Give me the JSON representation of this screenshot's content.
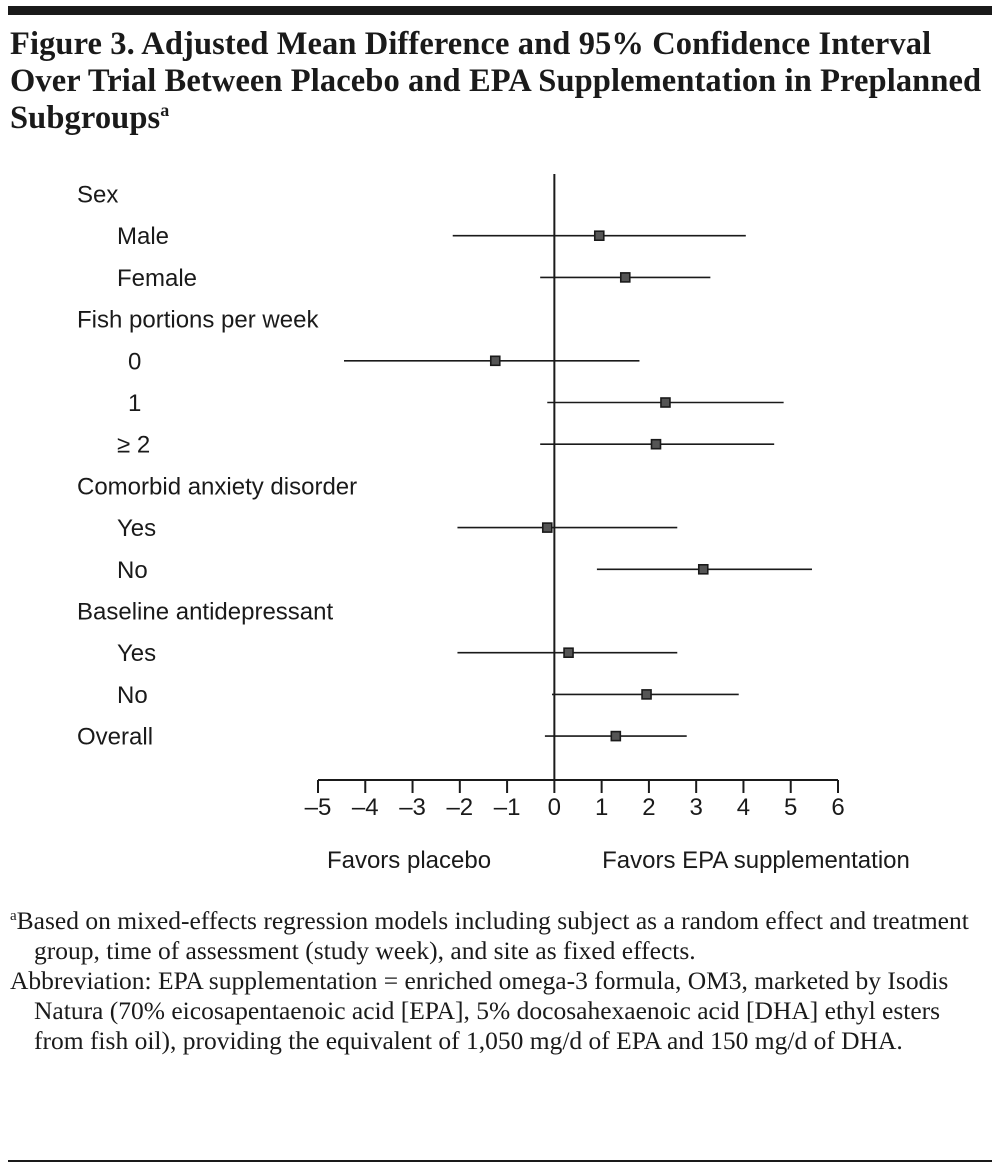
{
  "figure": {
    "title": "Figure 3. Adjusted Mean Difference and 95% Confidence Interval Over Trial Between Placebo and EPA Supplementation in Preplanned Subgroups",
    "title_superscript": "a"
  },
  "chart_data": {
    "type": "forest",
    "xlim": [
      -5,
      6
    ],
    "xticks": [
      -5,
      -4,
      -3,
      -2,
      -1,
      0,
      1,
      2,
      3,
      4,
      5,
      6
    ],
    "xtick_labels": [
      "–5",
      "–4",
      "–3",
      "–2",
      "–1",
      "0",
      "1",
      "2",
      "3",
      "4",
      "5",
      "6"
    ],
    "reference_line": 0,
    "grid": false,
    "direction_labels": {
      "left": "Favors placebo",
      "right": "Favors EPA supplementation"
    },
    "rows": [
      {
        "label": "Sex",
        "header": true
      },
      {
        "label": "Male",
        "indent": 1,
        "estimate": 0.95,
        "lower": -2.15,
        "upper": 4.05
      },
      {
        "label": "Female",
        "indent": 1,
        "estimate": 1.5,
        "lower": -0.3,
        "upper": 3.3
      },
      {
        "label": "Fish portions per week",
        "header": true
      },
      {
        "label": "0",
        "indent": 2,
        "estimate": -1.25,
        "lower": -4.45,
        "upper": 1.8
      },
      {
        "label": "1",
        "indent": 2,
        "estimate": 2.35,
        "lower": -0.15,
        "upper": 4.85
      },
      {
        "label": "≥ 2",
        "indent": 1,
        "estimate": 2.15,
        "lower": -0.3,
        "upper": 4.65
      },
      {
        "label": "Comorbid anxiety disorder",
        "header": true
      },
      {
        "label": "Yes",
        "indent": 1,
        "estimate": -0.15,
        "lower": -2.05,
        "upper": 2.6
      },
      {
        "label": "No",
        "indent": 1,
        "estimate": 3.15,
        "lower": 0.9,
        "upper": 5.45
      },
      {
        "label": "Baseline antidepressant",
        "header": true
      },
      {
        "label": "Yes",
        "indent": 1,
        "estimate": 0.3,
        "lower": -2.05,
        "upper": 2.6
      },
      {
        "label": "No",
        "indent": 1,
        "estimate": 1.95,
        "lower": -0.05,
        "upper": 3.9
      },
      {
        "label": "Overall",
        "indent": 0,
        "estimate": 1.3,
        "lower": -0.2,
        "upper": 2.8
      }
    ]
  },
  "notes": {
    "footnote_marker": "a",
    "footnote_text": "Based on mixed-effects regression models including subject as a random effect and treatment group, time of assessment (study week), and site as fixed effects.",
    "abbreviation": "Abbreviation: EPA supplementation = enriched omega-3 formula, OM3, marketed by Isodis Natura (70% eicosapentaenoic acid [EPA], 5% docosahexaenoic acid [DHA] ethyl esters from fish oil), providing the equivalent of 1,050 mg/d of EPA and 150 mg/d of DHA."
  }
}
